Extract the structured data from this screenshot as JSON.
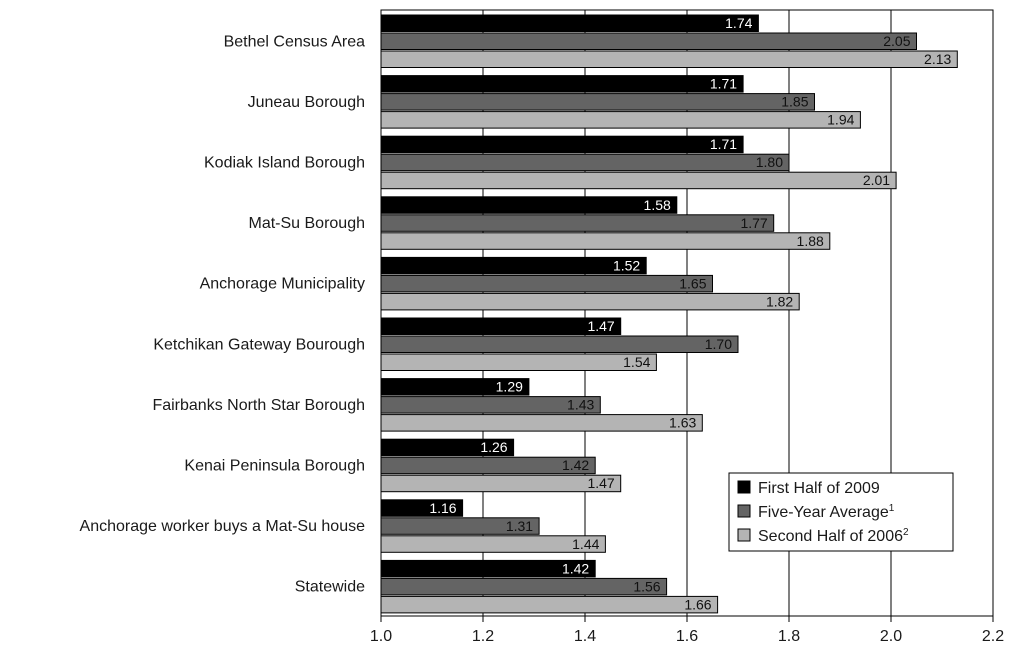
{
  "chart_data": {
    "type": "bar",
    "orientation": "horizontal",
    "title": "",
    "xlabel": "",
    "ylabel": "",
    "xlim": [
      1.0,
      2.2
    ],
    "x_ticks": [
      "1.0",
      "1.2",
      "1.4",
      "1.6",
      "1.8",
      "2.0",
      "2.2"
    ],
    "grid": "vertical",
    "legend_position": "lower-right",
    "categories": [
      "Bethel Census Area",
      "Juneau Borough",
      "Kodiak Island Borough",
      "Mat-Su Borough",
      "Anchorage Municipality",
      "Ketchikan Gateway Bourough",
      "Fairbanks North Star Borough",
      "Kenai Peninsula Borough",
      "Anchorage worker buys a Mat-Su house",
      "Statewide"
    ],
    "series": [
      {
        "name": "First Half of 2009",
        "superscript": "",
        "color": "#000000",
        "label_color": "#ffffff",
        "values": [
          1.74,
          1.71,
          1.71,
          1.58,
          1.52,
          1.47,
          1.29,
          1.26,
          1.16,
          1.42
        ],
        "labels": [
          "1.74",
          "1.71",
          "1.71",
          "1.58",
          "1.52",
          "1.47",
          "1.29",
          "1.26",
          "1.16",
          "1.42"
        ]
      },
      {
        "name": "Five-Year Average",
        "superscript": "1",
        "color": "#646464",
        "label_color": "#111111",
        "values": [
          2.05,
          1.85,
          1.8,
          1.77,
          1.65,
          1.7,
          1.43,
          1.42,
          1.31,
          1.56
        ],
        "labels": [
          "2.05",
          "1.85",
          "1.80",
          "1.77",
          "1.65",
          "1.70",
          "1.43",
          "1.42",
          "1.31",
          "1.56"
        ]
      },
      {
        "name": "Second Half of 2006",
        "superscript": "2",
        "color": "#b4b4b4",
        "label_color": "#111111",
        "values": [
          2.13,
          1.94,
          2.01,
          1.88,
          1.82,
          1.54,
          1.63,
          1.47,
          1.44,
          1.66
        ],
        "labels": [
          "2.13",
          "1.94",
          "2.01",
          "1.88",
          "1.82",
          "1.54",
          "1.63",
          "1.47",
          "1.44",
          "1.66"
        ]
      }
    ]
  }
}
